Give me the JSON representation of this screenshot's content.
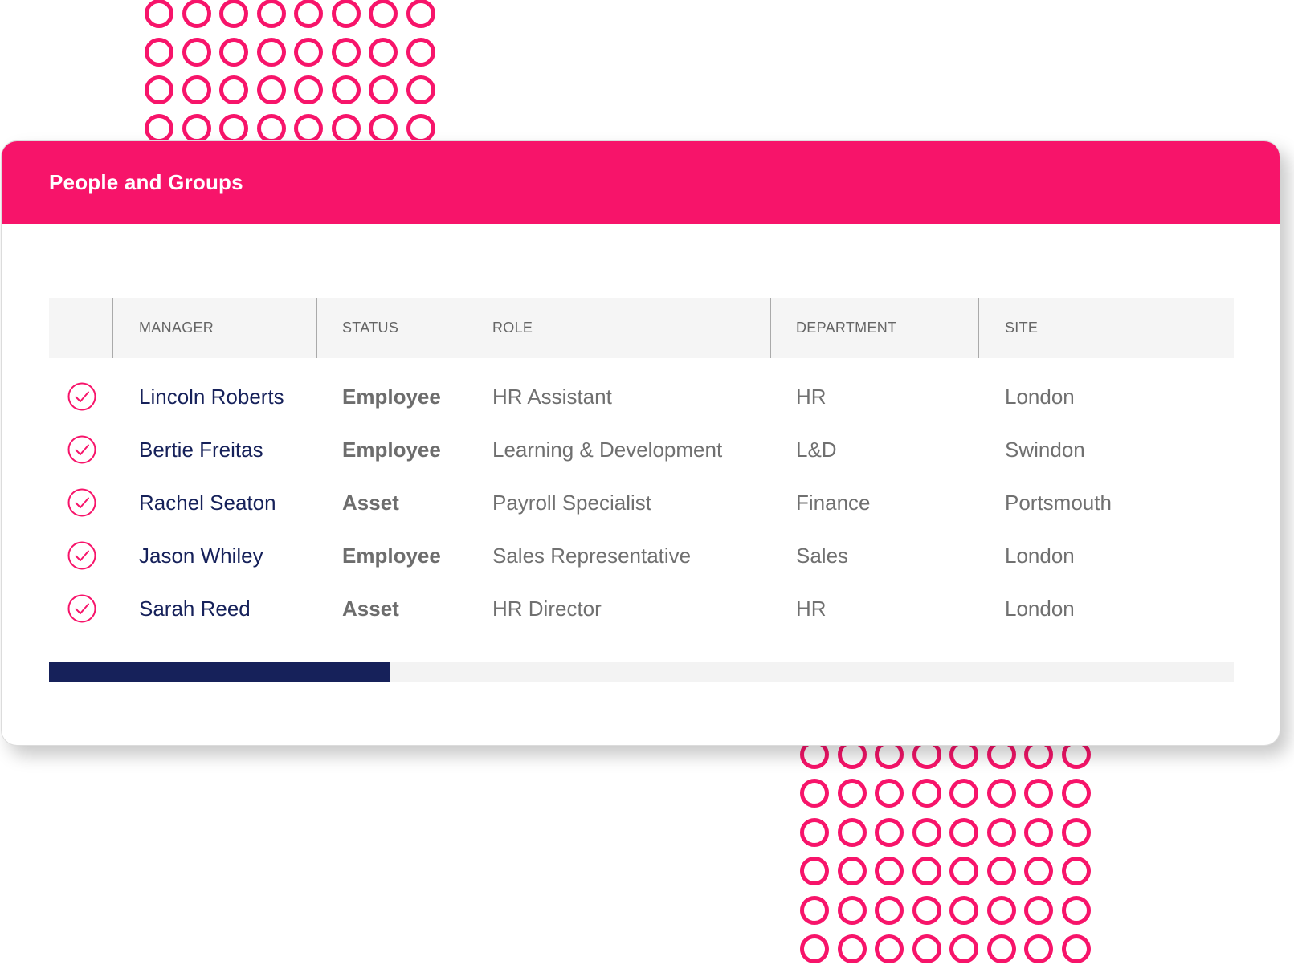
{
  "colors": {
    "accent": "#f7146a",
    "navy": "#16215a"
  },
  "card": {
    "title": "People and Groups"
  },
  "table": {
    "columns": {
      "select": "",
      "manager": "MANAGER",
      "status": "STATUS",
      "role": "ROLE",
      "department": "DEPARTMENT",
      "site": "SITE"
    },
    "rows": [
      {
        "checked": true,
        "manager": "Lincoln Roberts",
        "status": "Employee",
        "role": "HR Assistant",
        "department": "HR",
        "site": "London"
      },
      {
        "checked": true,
        "manager": "Bertie Freitas",
        "status": "Employee",
        "role": "Learning & Development",
        "department": "L&D",
        "site": "Swindon"
      },
      {
        "checked": true,
        "manager": "Rachel Seaton",
        "status": "Asset",
        "role": "Payroll Specialist",
        "department": "Finance",
        "site": "Portsmouth"
      },
      {
        "checked": true,
        "manager": "Jason Whiley",
        "status": "Employee",
        "role": "Sales Representative",
        "department": "Sales",
        "site": "London"
      },
      {
        "checked": true,
        "manager": "Sarah Reed",
        "status": "Asset",
        "role": "HR Director",
        "department": "HR",
        "site": "London"
      }
    ]
  },
  "progress": {
    "value": 0.288
  },
  "icons": {
    "row_check": "check-circle-icon",
    "decoration": "ring-dot-icon"
  }
}
